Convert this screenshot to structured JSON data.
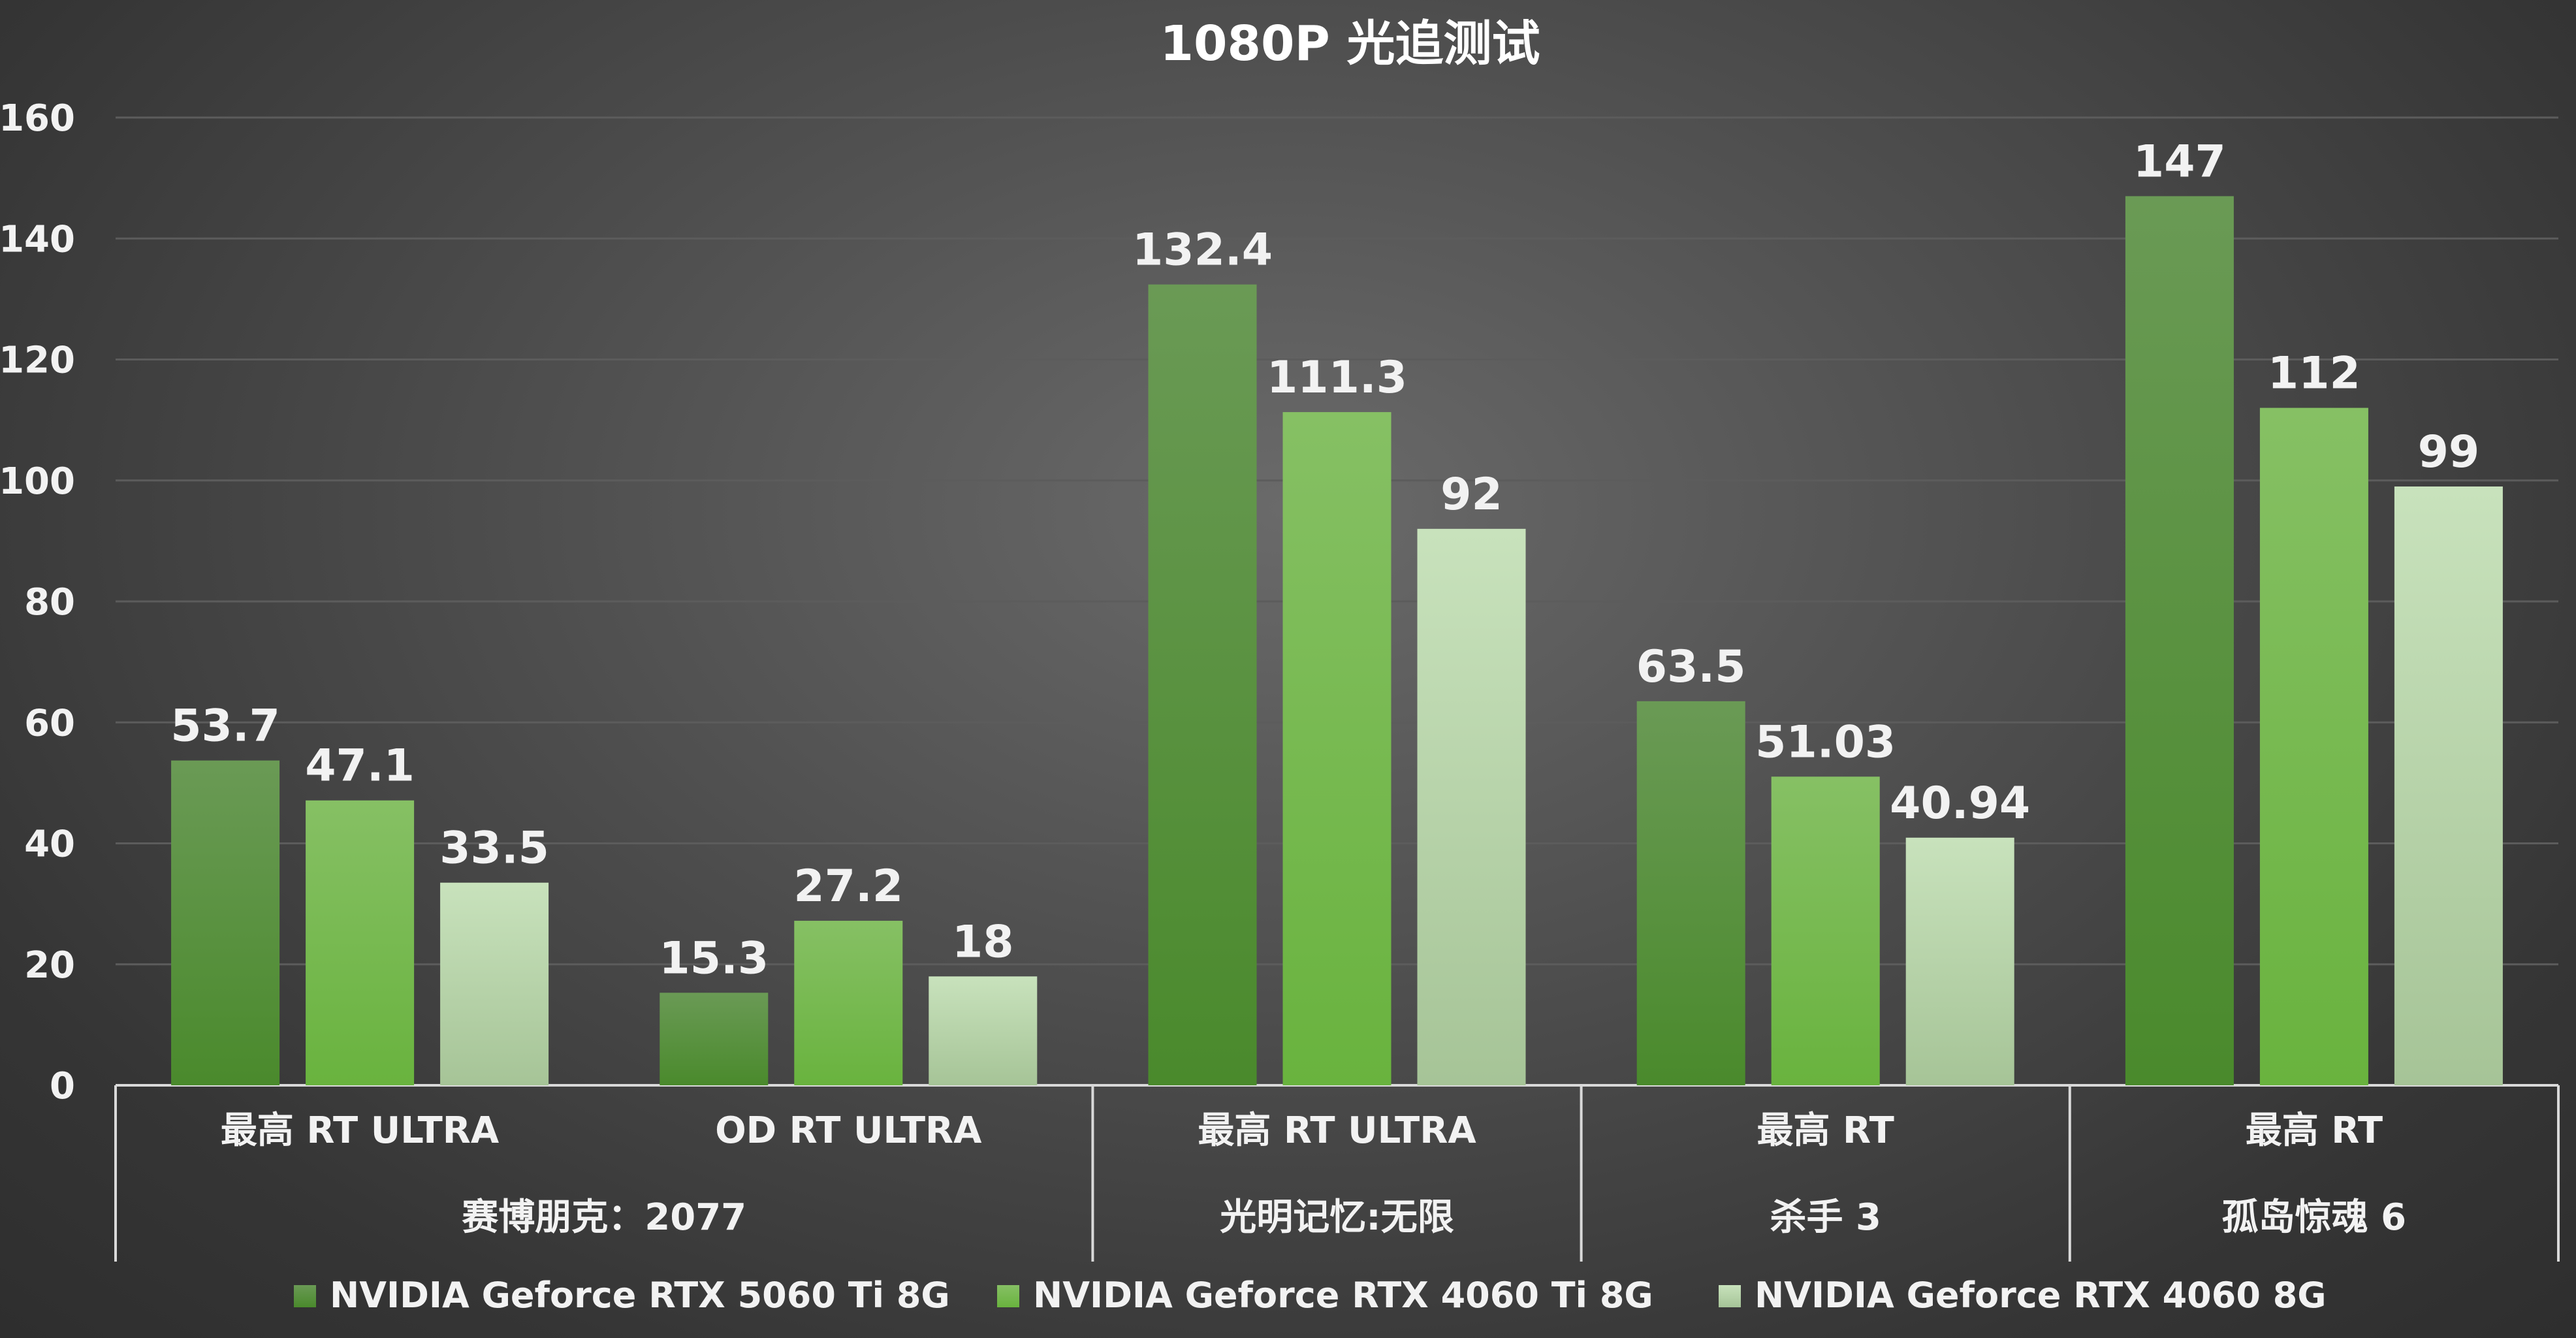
{
  "chart_data": {
    "type": "bar",
    "title": "1080P 光追测试",
    "ylim": [
      0,
      160
    ],
    "yticks": [
      0,
      20,
      40,
      60,
      80,
      100,
      120,
      140,
      160
    ],
    "grid": true,
    "legend_position": "bottom",
    "categories": [
      {
        "setting": "最高 RT ULTRA",
        "game": "赛博朋克：2077",
        "group": 0
      },
      {
        "setting": "OD RT ULTRA",
        "game": "赛博朋克：2077",
        "group": 0
      },
      {
        "setting": "最高 RT ULTRA",
        "game": "光明记忆:无限",
        "group": 1
      },
      {
        "setting": "最高 RT",
        "game": "杀手 3",
        "group": 2
      },
      {
        "setting": "最高 RT",
        "game": "孤岛惊魂 6",
        "group": 3
      }
    ],
    "games": [
      "赛博朋克：2077",
      "光明记忆:无限",
      "杀手 3",
      "孤岛惊魂 6"
    ],
    "series": [
      {
        "name": "NVIDIA Geforce RTX 5060 Ti 8G",
        "values": [
          53.7,
          15.3,
          132.4,
          63.5,
          147
        ],
        "labels": [
          "53.7",
          "15.3",
          "132.4",
          "63.5",
          "147"
        ],
        "color_top": "#6a9a55",
        "color_bottom": "#4a8a2c"
      },
      {
        "name": "NVIDIA Geforce RTX 4060 Ti 8G",
        "values": [
          47.1,
          27.2,
          111.3,
          51.03,
          112
        ],
        "labels": [
          "47.1",
          "27.2",
          "111.3",
          "51.03",
          "112"
        ],
        "color_top": "#86c064",
        "color_bottom": "#69b33e"
      },
      {
        "name": "NVIDIA Geforce RTX 4060 8G",
        "values": [
          33.5,
          18,
          92,
          40.94,
          99
        ],
        "labels": [
          "33.5",
          "18",
          "92",
          "40.94",
          "99"
        ],
        "color_top": "#c8e2bc",
        "color_bottom": "#a6c497"
      }
    ]
  }
}
